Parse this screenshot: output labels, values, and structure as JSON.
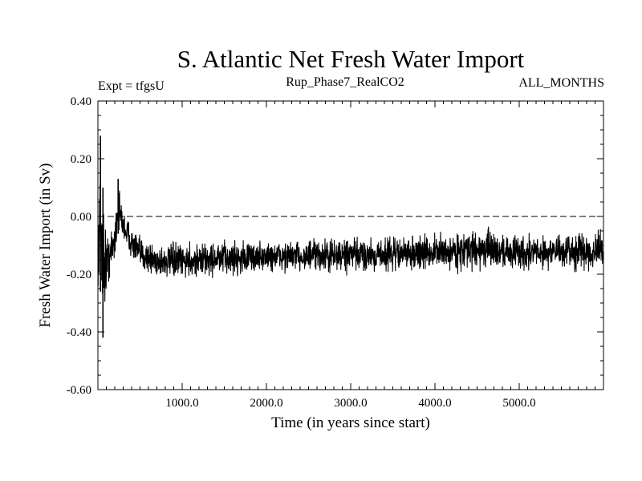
{
  "chart_data": {
    "type": "line",
    "title": "S. Atlantic Net Fresh Water Import",
    "experiment_label": "Expt = tfgsU",
    "run_label": "Rup_Phase7_RealCO2",
    "season_label": "ALL_MONTHS",
    "xlabel": "Time (in years since start)",
    "ylabel": "Fresh Water Import (in Sv)",
    "xlim": [
      0,
      6000
    ],
    "ylim": [
      -0.6,
      0.4
    ],
    "x_ticks": [
      {
        "value": 1000,
        "label": "1000.0"
      },
      {
        "value": 2000,
        "label": "2000.0"
      },
      {
        "value": 3000,
        "label": "3000.0"
      },
      {
        "value": 4000,
        "label": "4000.0"
      },
      {
        "value": 5000,
        "label": "5000.0"
      }
    ],
    "y_ticks": [
      {
        "value": 0.4,
        "label": "0.40"
      },
      {
        "value": 0.2,
        "label": "0.20"
      },
      {
        "value": 0.0,
        "label": "0.00"
      },
      {
        "value": -0.2,
        "label": "-0.20"
      },
      {
        "value": -0.4,
        "label": "-0.40"
      },
      {
        "value": -0.6,
        "label": "-0.60"
      }
    ],
    "reference_line": {
      "y": 0.0,
      "style": "dashed"
    },
    "series": [
      {
        "name": "Net fresh water import",
        "color": "#000000",
        "envelope": [
          {
            "x": 0,
            "min": -0.24,
            "max": -0.04
          },
          {
            "x": 30,
            "min": -0.26,
            "max": 0.28
          },
          {
            "x": 60,
            "min": -0.42,
            "max": 0.1
          },
          {
            "x": 100,
            "min": -0.3,
            "max": -0.02
          },
          {
            "x": 150,
            "min": -0.22,
            "max": -0.04
          },
          {
            "x": 200,
            "min": -0.18,
            "max": 0.02
          },
          {
            "x": 240,
            "min": -0.06,
            "max": 0.13
          },
          {
            "x": 300,
            "min": -0.1,
            "max": 0.04
          },
          {
            "x": 400,
            "min": -0.16,
            "max": -0.02
          },
          {
            "x": 500,
            "min": -0.2,
            "max": -0.06
          },
          {
            "x": 700,
            "min": -0.23,
            "max": -0.08
          },
          {
            "x": 1000,
            "min": -0.23,
            "max": -0.08
          },
          {
            "x": 1500,
            "min": -0.22,
            "max": -0.07
          },
          {
            "x": 2000,
            "min": -0.21,
            "max": -0.07
          },
          {
            "x": 3000,
            "min": -0.21,
            "max": -0.06
          },
          {
            "x": 4000,
            "min": -0.2,
            "max": -0.05
          },
          {
            "x": 4600,
            "min": -0.2,
            "max": -0.03
          },
          {
            "x": 5000,
            "min": -0.2,
            "max": -0.05
          },
          {
            "x": 6000,
            "min": -0.2,
            "max": -0.04
          }
        ],
        "mean_after_spinup": -0.13
      }
    ]
  }
}
